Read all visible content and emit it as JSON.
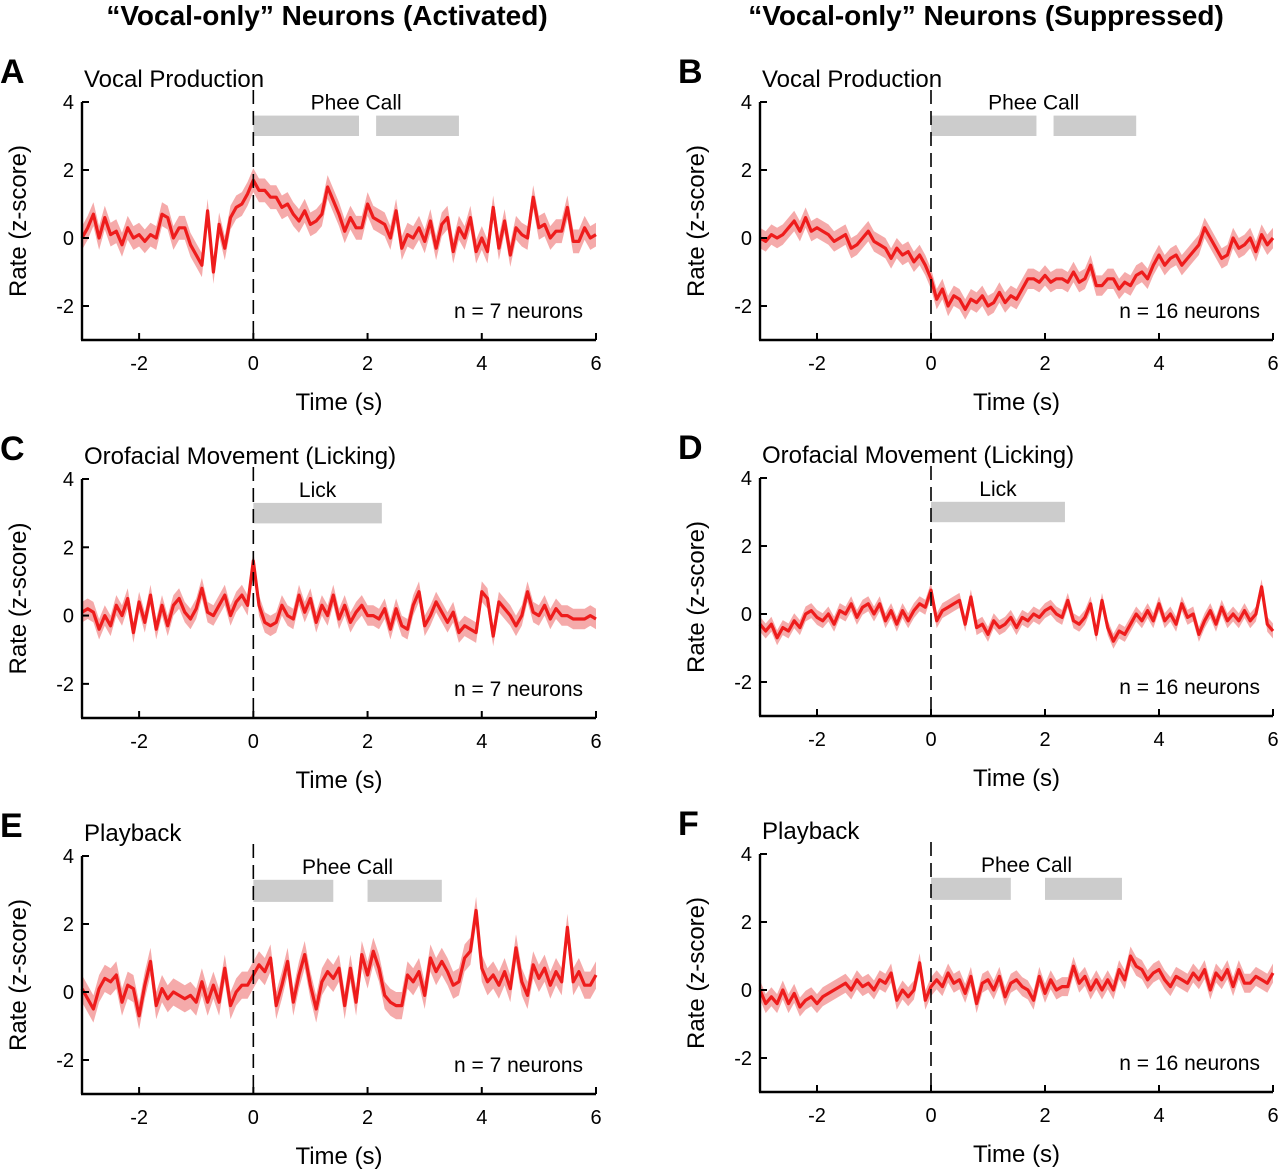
{
  "column_titles": [
    "“Vocal-only” Neurons (Activated)",
    "“Vocal-only” Neurons (Suppressed)"
  ],
  "colors": {
    "line": "#ee1c1c",
    "band": "#f5aaaa",
    "bar": "#cccccc",
    "axis": "#000000"
  },
  "chart_data": [
    {
      "panel": "A",
      "type": "line",
      "title": "Vocal Production",
      "xlabel": "Time (s)",
      "ylabel": "Rate (z-score)",
      "xlim": [
        -3,
        6
      ],
      "ylim": [
        -3,
        4
      ],
      "xticks": [
        -2,
        0,
        2,
        4,
        6
      ],
      "yticks": [
        -2,
        0,
        2,
        4
      ],
      "annotation": "n = 7 neurons",
      "onset_time": 0,
      "bars": [
        {
          "label": "Phee Call",
          "start": 0,
          "end": 1.85
        },
        {
          "start": 2.15,
          "end": 3.6
        }
      ],
      "bar_y": [
        3.0,
        3.6
      ],
      "x_start": -3,
      "x_step": 0.1,
      "values": [
        0.0,
        0.3,
        0.7,
        0.0,
        0.6,
        0.1,
        0.2,
        -0.2,
        0.3,
        0.0,
        0.1,
        -0.1,
        0.1,
        0.0,
        0.7,
        0.6,
        0.0,
        0.3,
        0.3,
        -0.2,
        -0.5,
        -0.8,
        0.8,
        -1.0,
        0.4,
        -0.3,
        0.6,
        0.9,
        1.0,
        1.3,
        1.7,
        1.4,
        1.4,
        1.2,
        1.2,
        0.9,
        1.0,
        0.7,
        0.5,
        0.8,
        0.4,
        0.5,
        0.7,
        1.5,
        1.1,
        0.7,
        0.2,
        0.6,
        0.3,
        0.3,
        1.0,
        0.6,
        0.5,
        0.4,
        0.0,
        0.8,
        -0.3,
        0.1,
        0.0,
        0.3,
        -0.1,
        0.5,
        -0.3,
        0.4,
        0.6,
        -0.4,
        0.3,
        0.0,
        0.6,
        -0.4,
        0.0,
        -0.4,
        0.9,
        -0.3,
        0.5,
        -0.5,
        0.3,
        0.1,
        0.0,
        1.2,
        0.3,
        0.4,
        0.0,
        0.2,
        0.2,
        0.9,
        -0.1,
        -0.1,
        0.3,
        0.0,
        0.1
      ],
      "band_halfwidth": 0.35
    },
    {
      "panel": "B",
      "type": "line",
      "title": "Vocal Production",
      "xlabel": "Time (s)",
      "ylabel": "Rate (z-score)",
      "xlim": [
        -3,
        6
      ],
      "ylim": [
        -3,
        4
      ],
      "xticks": [
        -2,
        0,
        2,
        4,
        6
      ],
      "yticks": [
        -2,
        0,
        2,
        4
      ],
      "annotation": "n = 16 neurons",
      "onset_time": 0,
      "bars": [
        {
          "label": "Phee Call",
          "start": 0,
          "end": 1.85
        },
        {
          "start": 2.15,
          "end": 3.6
        }
      ],
      "bar_y": [
        3.0,
        3.6
      ],
      "x_start": -3,
      "x_step": 0.1,
      "values": [
        0.0,
        -0.1,
        0.1,
        0.0,
        0.1,
        0.3,
        0.5,
        0.2,
        0.6,
        0.2,
        0.3,
        0.2,
        0.1,
        -0.1,
        0.0,
        0.1,
        -0.3,
        -0.2,
        0.0,
        0.2,
        -0.1,
        -0.2,
        -0.3,
        -0.6,
        -0.3,
        -0.5,
        -0.4,
        -0.7,
        -0.5,
        -0.8,
        -1.2,
        -1.8,
        -1.5,
        -2.0,
        -1.7,
        -1.8,
        -2.1,
        -1.8,
        -1.9,
        -1.7,
        -2.0,
        -1.9,
        -1.6,
        -1.9,
        -1.7,
        -1.8,
        -1.5,
        -1.2,
        -1.2,
        -1.3,
        -1.1,
        -1.3,
        -1.2,
        -1.2,
        -1.3,
        -1.0,
        -1.3,
        -1.2,
        -0.8,
        -1.4,
        -1.4,
        -1.2,
        -1.2,
        -1.5,
        -1.3,
        -1.4,
        -1.1,
        -1.0,
        -1.2,
        -0.8,
        -0.5,
        -0.8,
        -0.6,
        -0.5,
        -0.8,
        -0.6,
        -0.4,
        -0.2,
        0.3,
        0.0,
        -0.3,
        -0.6,
        -0.5,
        0.0,
        -0.3,
        -0.2,
        0.0,
        -0.4,
        0.1,
        -0.2,
        0.0
      ],
      "band_halfwidth": 0.3
    },
    {
      "panel": "C",
      "type": "line",
      "title": "Orofacial Movement (Licking)",
      "xlabel": "Time (s)",
      "ylabel": "Rate (z-score)",
      "xlim": [
        -3,
        6
      ],
      "ylim": [
        -3,
        4
      ],
      "xticks": [
        -2,
        0,
        2,
        4,
        6
      ],
      "yticks": [
        -2,
        0,
        2,
        4
      ],
      "annotation": "n = 7 neurons",
      "onset_time": 0,
      "bars": [
        {
          "label": "Lick",
          "start": 0,
          "end": 2.25
        }
      ],
      "bar_y": [
        2.7,
        3.3
      ],
      "x_start": -3,
      "x_step": 0.1,
      "values": [
        0.1,
        0.2,
        0.1,
        -0.4,
        0.0,
        -0.3,
        0.3,
        0.0,
        0.5,
        -0.5,
        0.4,
        -0.2,
        0.6,
        -0.4,
        0.3,
        -0.3,
        0.3,
        0.5,
        0.1,
        -0.1,
        0.2,
        0.8,
        0.1,
        0.0,
        0.3,
        0.6,
        0.0,
        0.4,
        0.6,
        0.3,
        1.6,
        0.3,
        -0.2,
        -0.3,
        -0.2,
        0.3,
        0.0,
        -0.1,
        0.6,
        0.1,
        0.5,
        -0.2,
        0.3,
        0.0,
        0.6,
        -0.1,
        0.3,
        -0.2,
        0.1,
        0.3,
        0.0,
        0.0,
        -0.1,
        0.2,
        -0.4,
        0.2,
        -0.3,
        -0.4,
        0.3,
        0.7,
        -0.3,
        0.0,
        0.4,
        0.1,
        -0.2,
        0.1,
        -0.5,
        -0.3,
        -0.4,
        -0.5,
        0.7,
        0.5,
        -0.6,
        0.4,
        0.2,
        0.0,
        -0.3,
        0.0,
        0.7,
        0.1,
        0.0,
        0.3,
        -0.1,
        0.2,
        0.0,
        0.0,
        -0.1,
        -0.1,
        -0.1,
        0.0,
        -0.1
      ],
      "band_halfwidth": 0.3
    },
    {
      "panel": "D",
      "type": "line",
      "title": "Orofacial Movement (Licking)",
      "xlabel": "Time (s)",
      "ylabel": "Rate (z-score)",
      "xlim": [
        -3,
        6
      ],
      "ylim": [
        -3,
        4
      ],
      "xticks": [
        -2,
        0,
        2,
        4,
        6
      ],
      "yticks": [
        -2,
        0,
        2,
        4
      ],
      "annotation": "n = 16 neurons",
      "onset_time": 0,
      "bars": [
        {
          "label": "Lick",
          "start": 0,
          "end": 2.35
        }
      ],
      "bar_y": [
        2.7,
        3.3
      ],
      "x_start": -3,
      "x_step": 0.1,
      "values": [
        -0.3,
        -0.5,
        -0.3,
        -0.7,
        -0.4,
        -0.5,
        -0.2,
        -0.4,
        0.0,
        0.1,
        -0.1,
        -0.2,
        0.0,
        -0.3,
        0.1,
        0.0,
        0.3,
        -0.1,
        0.2,
        0.3,
        0.0,
        0.3,
        -0.2,
        0.1,
        -0.3,
        0.1,
        -0.2,
        0.1,
        0.3,
        0.2,
        0.7,
        -0.2,
        0.1,
        0.2,
        0.3,
        0.4,
        -0.3,
        0.5,
        -0.4,
        -0.3,
        -0.6,
        -0.2,
        -0.4,
        -0.3,
        -0.1,
        -0.4,
        -0.1,
        -0.2,
        0.0,
        -0.1,
        0.1,
        0.2,
        0.0,
        -0.1,
        0.4,
        -0.2,
        -0.3,
        -0.1,
        0.3,
        -0.6,
        0.4,
        -0.4,
        -0.8,
        -0.5,
        -0.6,
        -0.3,
        0.0,
        -0.2,
        0.1,
        -0.2,
        0.3,
        -0.2,
        0.0,
        -0.3,
        0.3,
        -0.1,
        0.0,
        -0.6,
        -0.2,
        0.1,
        -0.3,
        0.2,
        -0.2,
        0.0,
        -0.2,
        0.1,
        -0.2,
        0.0,
        0.8,
        -0.3,
        -0.5
      ],
      "band_halfwidth": 0.22
    },
    {
      "panel": "E",
      "type": "line",
      "title": "Playback",
      "xlabel": "Time (s)",
      "ylabel": "Rate (z-score)",
      "xlim": [
        -3,
        6
      ],
      "ylim": [
        -3,
        4
      ],
      "xticks": [
        -2,
        0,
        2,
        4,
        6
      ],
      "yticks": [
        -2,
        0,
        2,
        4
      ],
      "annotation": "n = 7 neurons",
      "onset_time": 0,
      "bars": [
        {
          "label": "Phee Call",
          "start": 0,
          "end": 1.4
        },
        {
          "start": 2.0,
          "end": 3.3
        }
      ],
      "bar_y": [
        2.65,
        3.3
      ],
      "x_start": -3,
      "x_step": 0.1,
      "values": [
        0.1,
        -0.2,
        -0.5,
        0.1,
        0.4,
        0.3,
        0.5,
        -0.3,
        0.2,
        0.1,
        -0.7,
        0.2,
        0.9,
        -0.4,
        0.1,
        -0.2,
        0.0,
        -0.1,
        -0.2,
        -0.1,
        -0.3,
        0.3,
        -0.3,
        0.2,
        -0.3,
        0.7,
        -0.4,
        0.0,
        0.2,
        0.2,
        0.5,
        0.8,
        0.6,
        1.0,
        -0.4,
        0.2,
        0.9,
        -0.3,
        0.5,
        1.1,
        0.2,
        -0.5,
        0.3,
        0.6,
        0.4,
        0.7,
        -0.4,
        0.7,
        -0.3,
        1.1,
        0.5,
        1.2,
        0.7,
        -0.1,
        -0.3,
        -0.4,
        -0.4,
        0.5,
        0.3,
        0.6,
        -0.1,
        1.0,
        0.6,
        0.9,
        0.6,
        0.2,
        0.3,
        1.0,
        1.2,
        2.4,
        0.7,
        0.3,
        0.5,
        0.2,
        0.6,
        0.1,
        1.3,
        0.3,
        -0.1,
        0.8,
        0.4,
        0.7,
        0.2,
        0.6,
        0.3,
        1.9,
        0.3,
        0.6,
        0.2,
        0.2,
        0.5
      ],
      "band_halfwidth": 0.4
    },
    {
      "panel": "F",
      "type": "line",
      "title": "Playback",
      "xlabel": "Time (s)",
      "ylabel": "Rate (z-score)",
      "xlim": [
        -3,
        6
      ],
      "ylim": [
        -3,
        4
      ],
      "xticks": [
        -2,
        0,
        2,
        4,
        6
      ],
      "yticks": [
        -2,
        0,
        2,
        4
      ],
      "annotation": "n = 16 neurons",
      "onset_time": 0,
      "bars": [
        {
          "label": "Phee Call",
          "start": 0,
          "end": 1.4
        },
        {
          "start": 2.0,
          "end": 3.35
        }
      ],
      "bar_y": [
        2.65,
        3.3
      ],
      "x_start": -3,
      "x_step": 0.1,
      "values": [
        0.0,
        -0.4,
        -0.2,
        -0.4,
        0.0,
        -0.4,
        -0.1,
        -0.5,
        -0.3,
        -0.2,
        -0.4,
        -0.2,
        -0.1,
        0.0,
        0.1,
        0.2,
        0.0,
        0.3,
        0.1,
        0.2,
        0.0,
        0.3,
        0.2,
        0.5,
        -0.3,
        0.0,
        -0.2,
        0.0,
        0.8,
        -0.3,
        0.1,
        0.3,
        0.1,
        0.5,
        0.2,
        0.3,
        -0.1,
        0.4,
        -0.4,
        0.2,
        0.3,
        0.0,
        0.4,
        -0.2,
        0.2,
        0.3,
        0.1,
        0.0,
        -0.3,
        0.4,
        -0.1,
        0.3,
        0.0,
        0.1,
        0.1,
        0.7,
        0.2,
        0.4,
        0.0,
        0.3,
        0.0,
        0.3,
        0.0,
        0.6,
        0.3,
        1.0,
        0.7,
        0.6,
        0.3,
        0.5,
        0.6,
        0.3,
        0.1,
        0.4,
        0.3,
        0.2,
        0.5,
        0.3,
        0.6,
        0.0,
        0.5,
        0.3,
        0.6,
        0.1,
        0.6,
        0.2,
        0.2,
        0.4,
        0.3,
        0.2,
        0.5
      ],
      "band_halfwidth": 0.28
    }
  ]
}
